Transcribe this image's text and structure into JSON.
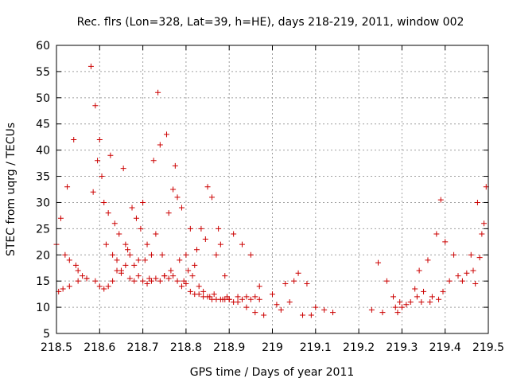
{
  "chart_data": {
    "type": "scatter",
    "title": "Rec. flrs (Lon=328, Lat=39, h=HE), days 218-219, 2011, window 002",
    "xlabel": "GPS time / Days of year 2011",
    "ylabel": "STEC from uqrg / TECUs",
    "xlim": [
      218.5,
      219.5
    ],
    "ylim": [
      5,
      60
    ],
    "xticks": [
      218.5,
      218.6,
      218.7,
      218.8,
      218.9,
      219.0,
      219.1,
      219.2,
      219.3,
      219.4,
      219.5
    ],
    "xtick_labels": [
      "218.5",
      "218.6",
      "218.7",
      "218.8",
      "218.9",
      "219",
      "219.1",
      "219.2",
      "219.3",
      "219.4",
      "219.5"
    ],
    "yticks": [
      5,
      10,
      15,
      20,
      25,
      30,
      35,
      40,
      45,
      50,
      55,
      60
    ],
    "ytick_labels": [
      "5",
      "10",
      "15",
      "20",
      "25",
      "30",
      "35",
      "40",
      "45",
      "50",
      "55",
      "60"
    ],
    "grid": true,
    "marker": "plus",
    "color": "#cc0000",
    "series": [
      {
        "x": [
          218.5,
          218.51,
          218.52,
          218.525,
          218.53,
          218.54,
          218.545,
          218.55,
          218.56,
          218.57,
          218.58,
          218.585,
          218.59,
          218.595,
          218.6,
          218.605,
          218.61,
          218.615,
          218.62,
          218.625,
          218.63,
          218.635,
          218.64,
          218.645,
          218.65,
          218.655,
          218.66,
          218.665,
          218.67,
          218.675,
          218.68,
          218.685,
          218.69,
          218.695,
          218.7,
          218.705,
          218.71,
          218.715,
          218.72,
          218.725,
          218.73,
          218.735,
          218.74,
          218.745,
          218.75,
          218.755,
          218.76,
          218.765,
          218.77,
          218.775,
          218.78,
          218.785,
          218.79,
          218.795,
          218.8,
          218.805,
          218.81,
          218.815,
          218.82,
          218.825,
          218.83,
          218.835,
          218.84,
          218.845,
          218.85,
          218.855,
          218.86,
          218.865,
          218.87,
          218.875,
          218.88,
          218.885,
          218.89,
          218.895,
          218.9,
          218.91,
          218.92,
          218.93,
          218.94,
          218.95,
          218.96,
          218.97,
          218.98
        ],
        "y": [
          22,
          27,
          20,
          33,
          19,
          42,
          18,
          17,
          16,
          15.5,
          56,
          32,
          48.5,
          38,
          42,
          35,
          30,
          22,
          28,
          39,
          20,
          26,
          19,
          24,
          17,
          36.5,
          22,
          21,
          20,
          29,
          18,
          27,
          16,
          25,
          30,
          19,
          22,
          15.5,
          20,
          38,
          24,
          51,
          41,
          20,
          16,
          43,
          28,
          17,
          32.5,
          37,
          31,
          19,
          29,
          15,
          20,
          17,
          25,
          16,
          18,
          21,
          14,
          25,
          13,
          23,
          33,
          12,
          31,
          12.5,
          20,
          25,
          22,
          11.5,
          16,
          12,
          11.5,
          24,
          11,
          22,
          10,
          20,
          9,
          14,
          8.5
        ]
      },
      {
        "x": [
          218.505,
          218.515,
          218.53,
          218.55,
          218.57,
          218.59,
          218.6,
          218.61,
          218.62,
          218.63,
          218.64,
          218.65,
          218.66,
          218.67,
          218.68,
          218.69,
          218.7,
          218.71,
          218.72,
          218.73,
          218.74,
          218.75,
          218.76,
          218.77,
          218.78,
          218.79,
          218.8,
          218.81,
          218.82,
          218.83,
          218.84,
          218.85,
          218.86,
          218.87,
          218.88,
          218.89,
          218.9,
          218.91,
          218.92,
          218.93,
          218.94,
          218.95,
          218.96,
          218.97
        ],
        "y": [
          13,
          13.5,
          14,
          15,
          15.5,
          15,
          14,
          13.5,
          14,
          15,
          17,
          16.5,
          18,
          15.5,
          15,
          19,
          15,
          14.5,
          15,
          15.5,
          15,
          16,
          15.5,
          16,
          15,
          14,
          14.5,
          13,
          12.5,
          12.5,
          12,
          12,
          11.5,
          11.5,
          11.5,
          11.5,
          11.5,
          11,
          12,
          11.5,
          12,
          11.5,
          12,
          11.5
        ]
      },
      {
        "x": [
          219.0,
          219.01,
          219.02,
          219.03,
          219.04,
          219.05,
          219.06,
          219.07,
          219.08,
          219.09,
          219.1,
          219.12,
          219.14
        ],
        "y": [
          12.5,
          10.5,
          9.5,
          14.5,
          11,
          15,
          16.5,
          8.5,
          14.5,
          8.5,
          10,
          9.5,
          9
        ]
      },
      {
        "x": [
          219.23,
          219.245,
          219.255,
          219.265,
          219.28,
          219.285,
          219.29,
          219.295,
          219.3,
          219.31,
          219.32,
          219.33,
          219.335,
          219.34,
          219.345,
          219.35,
          219.36,
          219.365,
          219.37,
          219.38,
          219.385,
          219.39,
          219.395,
          219.4,
          219.41,
          219.42,
          219.43,
          219.44,
          219.45,
          219.46,
          219.465,
          219.47,
          219.475,
          219.48,
          219.485,
          219.49,
          219.495
        ],
        "y": [
          9.5,
          18.5,
          9,
          15,
          12,
          10,
          9,
          11,
          10,
          10.5,
          11,
          13.5,
          12,
          17,
          11,
          13,
          19,
          11,
          12,
          24,
          11.5,
          30.5,
          13,
          22.5,
          15,
          20,
          16,
          15,
          16.5,
          20,
          17,
          14.5,
          30,
          19.5,
          24,
          26,
          33
        ]
      }
    ]
  }
}
